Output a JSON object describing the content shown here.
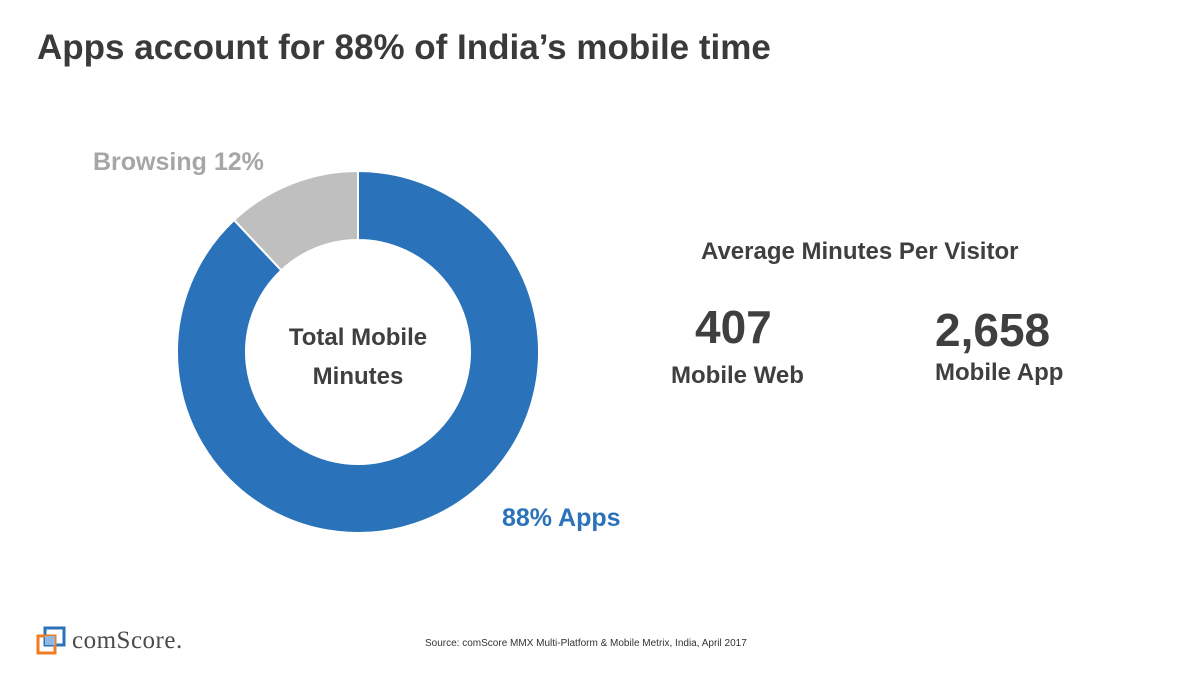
{
  "title": "Apps account for 88% of India’s mobile time",
  "chart_data": {
    "type": "pie",
    "slices": [
      {
        "name": "Apps",
        "value": 88,
        "label": "88% Apps",
        "color": "#2a73ba"
      },
      {
        "name": "Browsing",
        "value": 12,
        "label": "Browsing 12%",
        "color": "#bfbfbf"
      }
    ],
    "center_label_line1": "Total Mobile",
    "center_label_line2": "Minutes"
  },
  "stats": {
    "heading": "Average  Minutes Per Visitor",
    "mobile_web": {
      "value": "407",
      "label": "Mobile Web"
    },
    "mobile_app": {
      "value": "2,658",
      "label": "Mobile App"
    }
  },
  "footer": {
    "logo_text": "comScore.",
    "logo_icon": "comscore-logo-icon",
    "source": "Source: comScore MMX Multi-Platform & Mobile Metrix, India,  April 2017"
  },
  "colors": {
    "apps": "#2a73ba",
    "browsing": "#bfbfbf",
    "browsing_label": "#a6a6a6",
    "text": "#3f3f3f"
  }
}
